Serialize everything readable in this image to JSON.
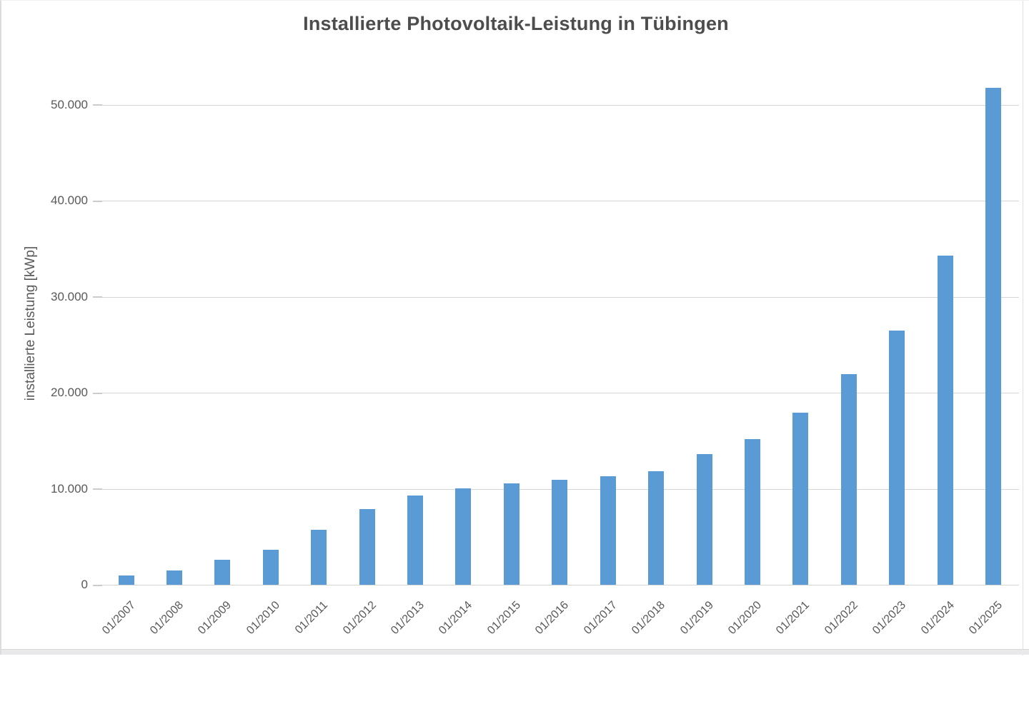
{
  "window": {
    "background": "#FFFFFF",
    "left_border_color": "#DCDCDC",
    "right_edge_line_color": "#E0E0E0",
    "bottom_strip_color": "#E9E9EB"
  },
  "chart_data": {
    "type": "bar",
    "title": "Installierte Photovoltaik-Leistung in Tübingen",
    "ylabel": "installierte Leistung [kWp]",
    "xlabel": "",
    "categories": [
      "01/2007",
      "01/2008",
      "01/2009",
      "01/2010",
      "01/2011",
      "01/2012",
      "01/2013",
      "01/2014",
      "01/2015",
      "01/2016",
      "01/2017",
      "01/2018",
      "01/2019",
      "01/2020",
      "01/2021",
      "01/2022",
      "01/2023",
      "01/2024",
      "01/2025"
    ],
    "values": [
      1000,
      1500,
      2600,
      3650,
      5700,
      7900,
      9300,
      10050,
      10550,
      10900,
      11300,
      11800,
      13600,
      15200,
      17950,
      21950,
      26500,
      34300,
      51800
    ],
    "ylim": [
      0,
      50000
    ],
    "yticks": {
      "values": [
        0,
        10000,
        20000,
        30000,
        40000,
        50000
      ],
      "labels": [
        "0",
        "10.000",
        "20.000",
        "30.000",
        "40.000",
        "50.000"
      ]
    },
    "grid": true,
    "legend": false,
    "colors": {
      "bar": "#5B9BD5",
      "gridline": "#D5D5D5",
      "tick": "#CCCCCC",
      "axis_text": "#595959",
      "title_text": "#4D4D4D"
    }
  }
}
